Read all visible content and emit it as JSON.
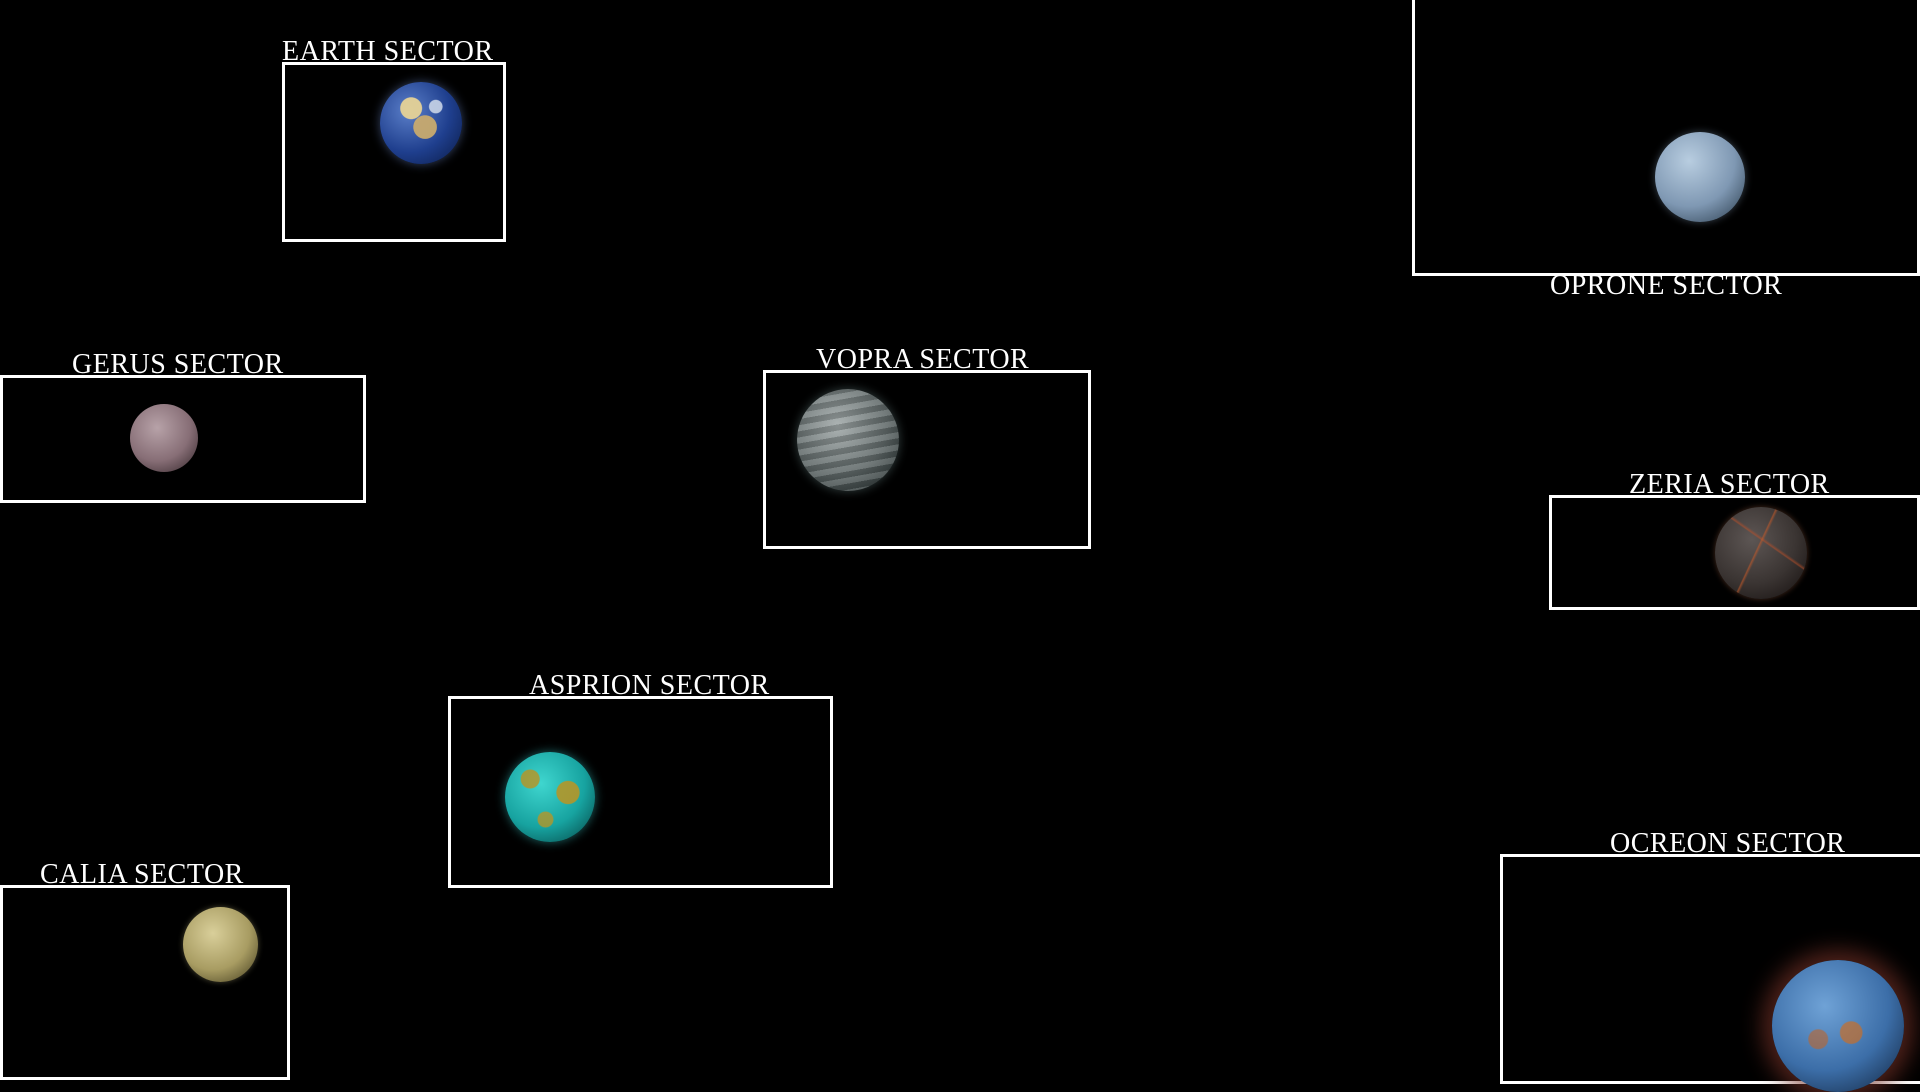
{
  "sectors": {
    "earth": {
      "label": "EARTH SECTOR",
      "planet": "earth-planet-icon"
    },
    "oprone": {
      "label": "OPRONE SECTOR",
      "planet": "oprone-planet-icon"
    },
    "gerus": {
      "label": "GERUS SECTOR",
      "planet": "gerus-planet-icon"
    },
    "vopra": {
      "label": "VOPRA SECTOR",
      "planet": "vopra-planet-icon"
    },
    "zeria": {
      "label": "ZERIA SECTOR",
      "planet": "zeria-planet-icon"
    },
    "asprion": {
      "label": "ASPRION SECTOR",
      "planet": "asprion-planet-icon"
    },
    "calia": {
      "label": "CALIA SECTOR",
      "planet": "calia-planet-icon"
    },
    "ocreon": {
      "label": "OCREON SECTOR",
      "planet": "ocreon-planet-icon"
    }
  },
  "colors": {
    "background": "#000000",
    "border": "#ffffff",
    "text": "#ffffff"
  }
}
